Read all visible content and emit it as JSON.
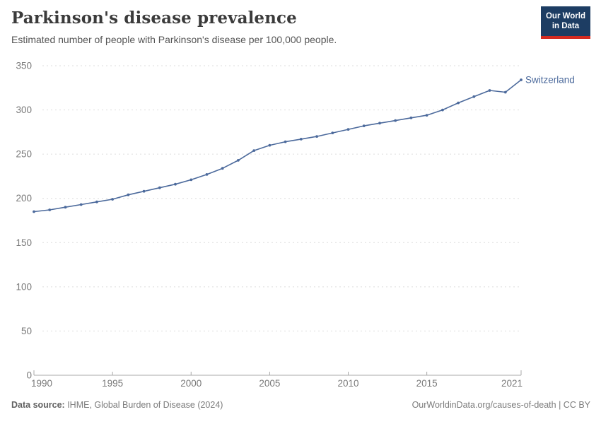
{
  "header": {
    "title": "Parkinson's disease prevalence",
    "subtitle": "Estimated number of people with Parkinson's disease per 100,000 people.",
    "logo": {
      "line1": "Our World",
      "line2": "in Data"
    }
  },
  "chart_data": {
    "type": "line",
    "title": "Parkinson's disease prevalence",
    "xlabel": "",
    "ylabel": "Estimated number of people with Parkinson's disease per 100,000 people",
    "xlim": [
      1990,
      2021
    ],
    "ylim": [
      0,
      350
    ],
    "x_ticks": [
      1990,
      1995,
      2000,
      2005,
      2010,
      2015,
      2021
    ],
    "y_ticks": [
      0,
      50,
      100,
      150,
      200,
      250,
      300,
      350
    ],
    "grid": "horizontal-dashed",
    "legend_position": "end-of-line-label",
    "series": [
      {
        "name": "Switzerland",
        "color": "#4c6a9c",
        "x": [
          1990,
          1991,
          1992,
          1993,
          1994,
          1995,
          1996,
          1997,
          1998,
          1999,
          2000,
          2001,
          2002,
          2003,
          2004,
          2005,
          2006,
          2007,
          2008,
          2009,
          2010,
          2011,
          2012,
          2013,
          2014,
          2015,
          2016,
          2017,
          2018,
          2019,
          2020,
          2021
        ],
        "values": [
          185,
          187,
          190,
          193,
          196,
          199,
          204,
          208,
          212,
          216,
          221,
          227,
          234,
          243,
          254,
          260,
          264,
          267,
          270,
          274,
          278,
          282,
          285,
          288,
          291,
          294,
          300,
          308,
          315,
          322,
          320,
          334
        ]
      }
    ]
  },
  "footer": {
    "source_label": "Data source:",
    "source_text": " IHME, Global Burden of Disease (2024)",
    "link_text": "OurWorldinData.org/causes-of-death | CC BY"
  },
  "colors": {
    "line": "#4c6a9c",
    "grid": "#dddddd",
    "axis": "#a8a8a8",
    "tick_label": "#7a7a7a",
    "logo_bg": "#1d3d63",
    "logo_red": "#d42b21"
  }
}
